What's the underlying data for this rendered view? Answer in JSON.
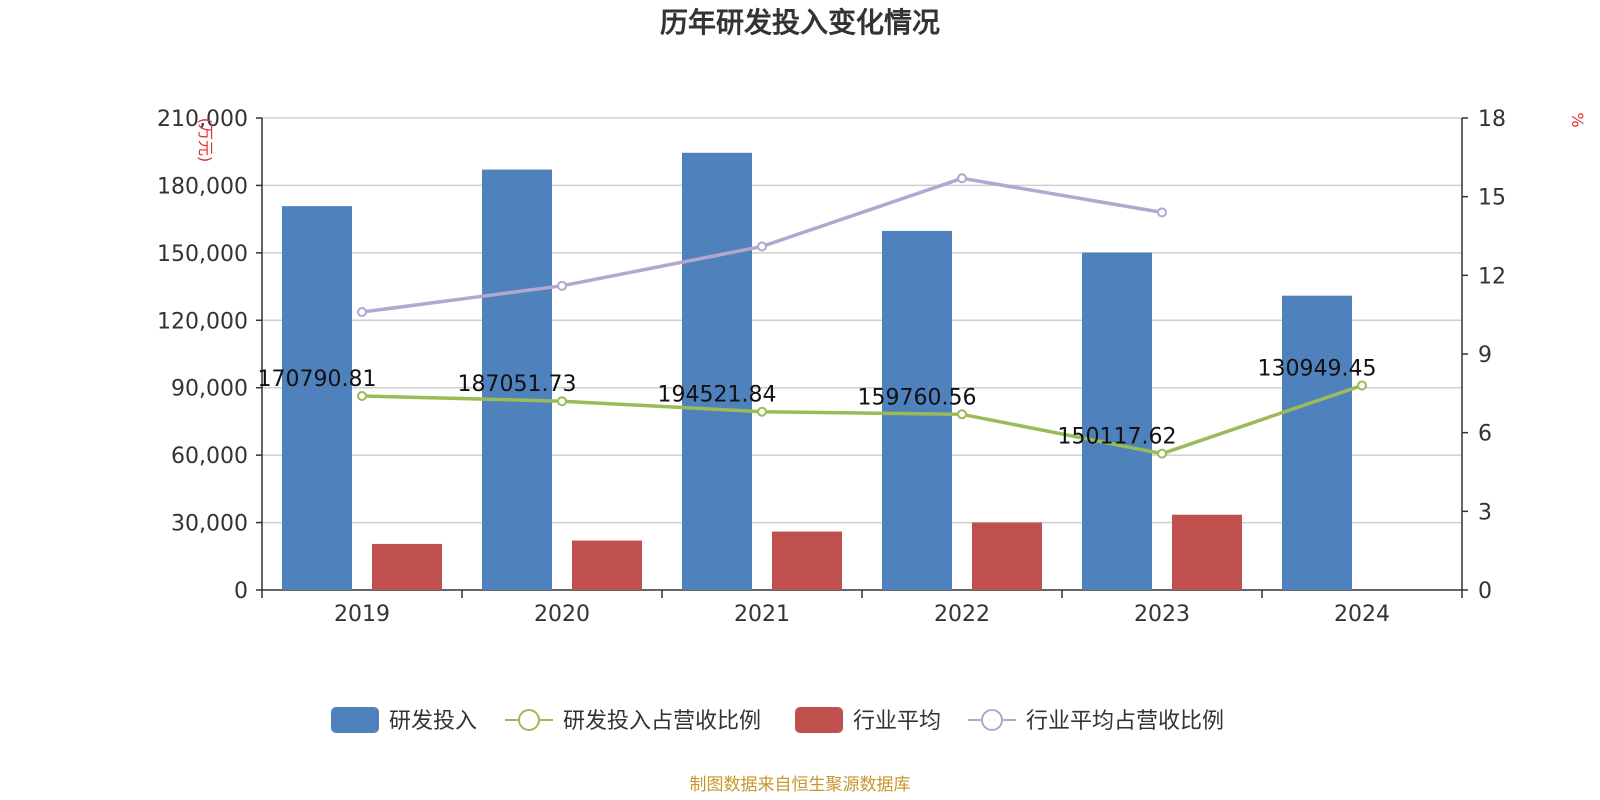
{
  "chart_data": {
    "type": "bar",
    "title": "历年研发投入变化情况",
    "categories": [
      "2019",
      "2020",
      "2021",
      "2022",
      "2023",
      "2024"
    ],
    "left_axis": {
      "unit": "(万元)",
      "range": [
        0,
        210000
      ],
      "ticks": [
        0,
        30000,
        60000,
        90000,
        120000,
        150000,
        180000,
        210000
      ],
      "tick_labels": [
        "0",
        "30,000",
        "60,000",
        "90,000",
        "120,000",
        "150,000",
        "180,000",
        "210,000"
      ]
    },
    "right_axis": {
      "unit": "%",
      "range": [
        0,
        18
      ],
      "ticks": [
        0,
        3,
        6,
        9,
        12,
        15,
        18
      ],
      "tick_labels": [
        "0",
        "3",
        "6",
        "9",
        "12",
        "15",
        "18"
      ]
    },
    "grid": true,
    "legend_position": "bottom",
    "series": [
      {
        "name": "研发投入",
        "kind": "bar",
        "axis": "left",
        "color": "#4f81bd",
        "values": [
          170790.81,
          187051.73,
          194521.84,
          159760.56,
          150117.62,
          130949.45
        ],
        "labels": [
          "170790.81",
          "187051.73",
          "194521.84",
          "159760.56",
          "150117.62",
          "130949.45"
        ]
      },
      {
        "name": "研发投入占营收比例",
        "kind": "line",
        "axis": "right",
        "color": "#9bbb59",
        "values": [
          7.4,
          7.2,
          6.8,
          6.7,
          5.2,
          7.8
        ]
      },
      {
        "name": "行业平均",
        "kind": "bar",
        "axis": "left",
        "color": "#c0504d",
        "values": [
          20500,
          22000,
          26000,
          30000,
          33500,
          null
        ]
      },
      {
        "name": "行业平均占营收比例",
        "kind": "line",
        "axis": "right",
        "color": "#b3a6cf",
        "values": [
          10.6,
          11.6,
          13.1,
          15.7,
          14.4,
          null
        ]
      }
    ],
    "source_note": "制图数据来自恒生聚源数据库"
  }
}
